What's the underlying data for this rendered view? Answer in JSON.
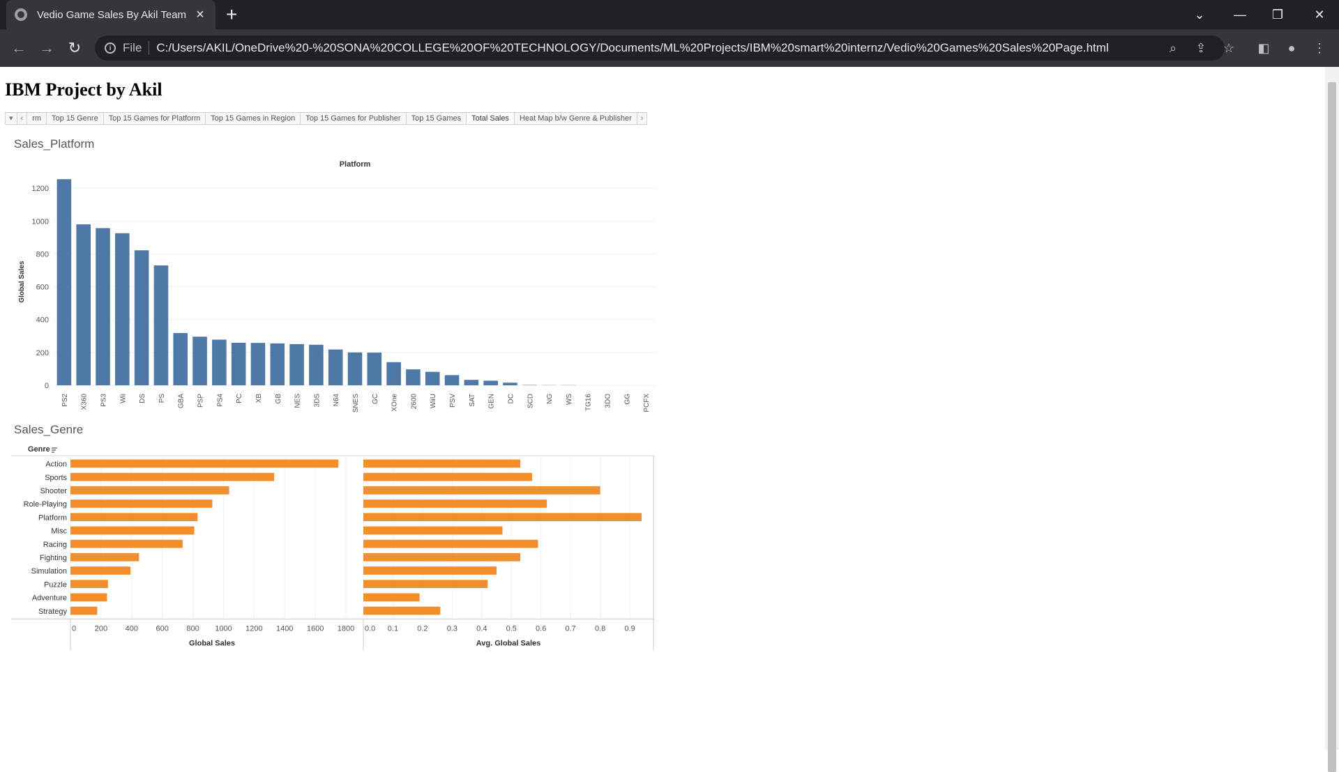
{
  "browser": {
    "tab_title": "Vedio Game Sales By Akil Team",
    "file_label": "File",
    "url": "C:/Users/AKIL/OneDrive%20-%20SONA%20COLLEGE%20OF%20TECHNOLOGY/Documents/ML%20Projects/IBM%20smart%20internz/Vedio%20Games%20Sales%20Page.html"
  },
  "page": {
    "title": "IBM Project by Akil"
  },
  "sheet_tabs": [
    {
      "label": "rm"
    },
    {
      "label": "Top 15 Genre"
    },
    {
      "label": "Top 15 Games for Platform"
    },
    {
      "label": "Top 15 Games in Region"
    },
    {
      "label": "Top 15 Games for Publisher"
    },
    {
      "label": "Top 15 Games"
    },
    {
      "label": "Total Sales",
      "active": true
    },
    {
      "label": "Heat Map b/w Genre & Publisher"
    }
  ],
  "sections": {
    "platform_title": "Sales_Platform",
    "genre_title": "Sales_Genre"
  },
  "chart_data": [
    {
      "type": "bar",
      "title": "Platform",
      "ylabel": "Global Sales",
      "ylim": [
        0,
        1260
      ],
      "yticks": [
        0,
        200,
        400,
        600,
        800,
        1000,
        1200
      ],
      "color": "#4e79a7",
      "categories": [
        "PS2",
        "X360",
        "PS3",
        "Wii",
        "DS",
        "PS",
        "GBA",
        "PSP",
        "PS4",
        "PC",
        "XB",
        "GB",
        "NES",
        "3DS",
        "N64",
        "SNES",
        "GC",
        "XOne",
        "2600",
        "WiiU",
        "PSV",
        "SAT",
        "GEN",
        "DC",
        "SCD",
        "NG",
        "WS",
        "TG16",
        "3DO",
        "GG",
        "PCFX"
      ],
      "values": [
        1255,
        980,
        957,
        926,
        822,
        730,
        318,
        296,
        278,
        259,
        258,
        255,
        251,
        247,
        218,
        200,
        199,
        141,
        97,
        82,
        62,
        33,
        28,
        16,
        2,
        1,
        1,
        0,
        0,
        0,
        0
      ]
    },
    {
      "type": "bar",
      "orientation": "horizontal",
      "color": "#f28e2b",
      "genre_header": "Genre",
      "categories": [
        "Action",
        "Sports",
        "Shooter",
        "Role-Playing",
        "Platform",
        "Misc",
        "Racing",
        "Fighting",
        "Simulation",
        "Puzzle",
        "Adventure",
        "Strategy"
      ],
      "panels": [
        {
          "xlabel": "Global Sales",
          "xlim": [
            0,
            1850
          ],
          "xticks": [
            0,
            200,
            400,
            600,
            800,
            1000,
            1200,
            1400,
            1600,
            1800
          ],
          "values": [
            1751,
            1331,
            1037,
            927,
            831,
            809,
            733,
            448,
            392,
            245,
            239,
            175
          ]
        },
        {
          "xlabel": "Avg. Global Sales",
          "xlim": [
            0,
            0.98
          ],
          "xticks": [
            0.0,
            0.1,
            0.2,
            0.3,
            0.4,
            0.5,
            0.6,
            0.7,
            0.8,
            0.9
          ],
          "values": [
            0.53,
            0.57,
            0.8,
            0.62,
            0.94,
            0.47,
            0.59,
            0.53,
            0.45,
            0.42,
            0.19,
            0.26
          ]
        }
      ]
    }
  ]
}
